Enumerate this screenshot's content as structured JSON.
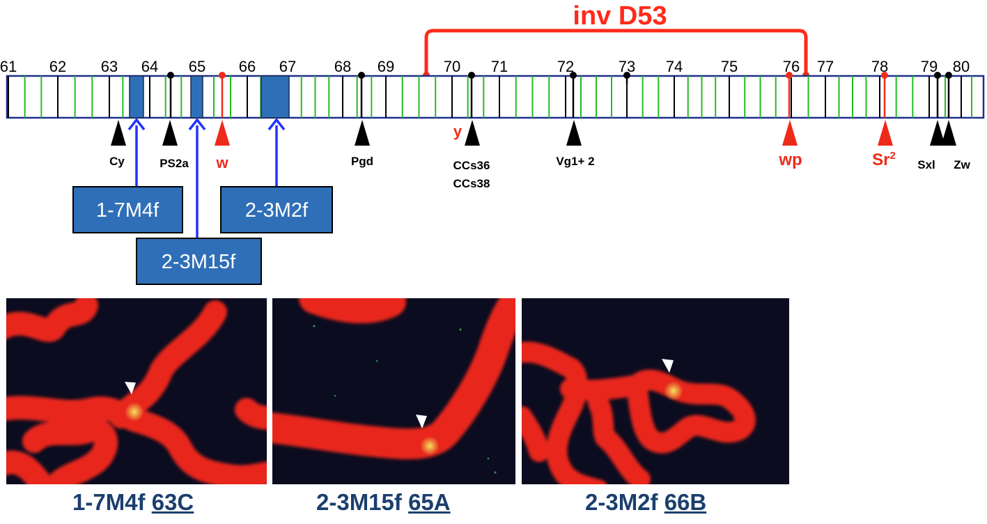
{
  "inversion": {
    "label": "inv D53",
    "color": "#ff2a1a"
  },
  "division_labels": [
    "61",
    "62",
    "63",
    "64",
    "65",
    "66",
    "67",
    "68",
    "69",
    "70",
    "71",
    "72",
    "73",
    "74",
    "75",
    "76",
    "77",
    "78",
    "79",
    "80"
  ],
  "markers_black": [
    {
      "label": "Cy"
    },
    {
      "label": "PS2a"
    },
    {
      "label": "Pgd"
    },
    {
      "label": "CCs36",
      "label2": "CCs38"
    },
    {
      "label": "Vg1+ 2"
    },
    {
      "label": "Sxl"
    },
    {
      "label": "Zw"
    }
  ],
  "markers_red": [
    {
      "label": "w"
    },
    {
      "label": "y"
    },
    {
      "label": "wp"
    },
    {
      "label": "Sr",
      "sup": "2"
    }
  ],
  "probes": [
    {
      "label": "1-7M4f"
    },
    {
      "label": "2-3M15f"
    },
    {
      "label": "2-3M2f"
    }
  ],
  "panels": [
    {
      "name": "1-7M4f",
      "band": "63C"
    },
    {
      "name": "2-3M15f",
      "band": "65A"
    },
    {
      "name": "2-3M2f",
      "band": "66B"
    }
  ],
  "colors": {
    "chromosome_outline": "#1f2f8a",
    "band_green": "#22bb22",
    "probe_box": "#2f6fb7",
    "arrow_blue": "#2233ff",
    "marker_red": "#ee2a1a",
    "caption_blue": "#1b3f6e"
  }
}
